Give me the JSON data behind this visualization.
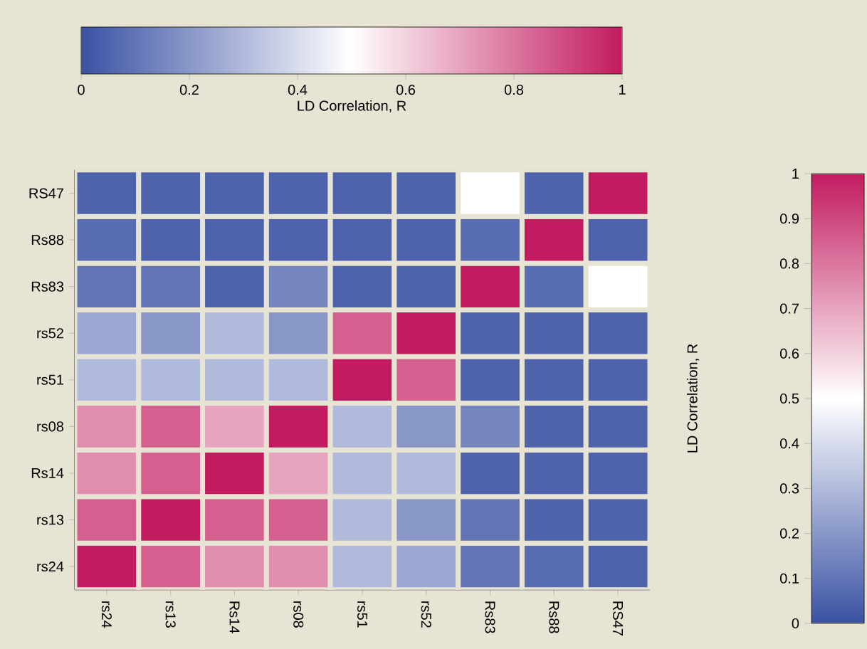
{
  "chart_data": {
    "type": "heatmap",
    "clabel": "LD Correlation, R",
    "clim": [
      0,
      1
    ],
    "cticks": [
      0,
      0.1,
      0.2,
      0.3,
      0.4,
      0.5,
      0.6,
      0.7,
      0.8,
      0.9,
      1
    ],
    "x2label": "LD Correlation, R",
    "x2lim": [
      0,
      1
    ],
    "x2ticks": [
      0,
      0.2,
      0.4,
      0.6,
      0.8,
      1
    ],
    "categories": [
      "rs24",
      "rs13",
      "Rs14",
      "rs08",
      "rs51",
      "rs52",
      "Rs83",
      "Rs88",
      "RS47"
    ],
    "y_categories": [
      "RS47",
      "Rs88",
      "Rs83",
      "rs52",
      "rs51",
      "rs08",
      "Rs14",
      "rs13",
      "rs24"
    ],
    "cells": [
      [
        0.05,
        0.05,
        0.05,
        0.05,
        0.05,
        0.05,
        0.5,
        0.05,
        1
      ],
      [
        0.08,
        0.05,
        0.05,
        0.05,
        0.05,
        0.05,
        0.08,
        1,
        0.05
      ],
      [
        0.1,
        0.1,
        0.05,
        0.15,
        0.05,
        0.05,
        1,
        0.08,
        0.5
      ],
      [
        0.25,
        0.2,
        0.3,
        0.2,
        0.85,
        1,
        0.05,
        0.05,
        0.05
      ],
      [
        0.3,
        0.3,
        0.3,
        0.3,
        1,
        0.85,
        0.05,
        0.05,
        0.05
      ],
      [
        0.75,
        0.85,
        0.7,
        1,
        0.3,
        0.2,
        0.15,
        0.05,
        0.05
      ],
      [
        0.75,
        0.85,
        1,
        0.7,
        0.3,
        0.3,
        0.05,
        0.05,
        0.05
      ],
      [
        0.85,
        1,
        0.85,
        0.85,
        0.3,
        0.2,
        0.1,
        0.05,
        0.05
      ],
      [
        1,
        0.85,
        0.75,
        0.75,
        0.3,
        0.25,
        0.1,
        0.08,
        0.05
      ]
    ]
  }
}
